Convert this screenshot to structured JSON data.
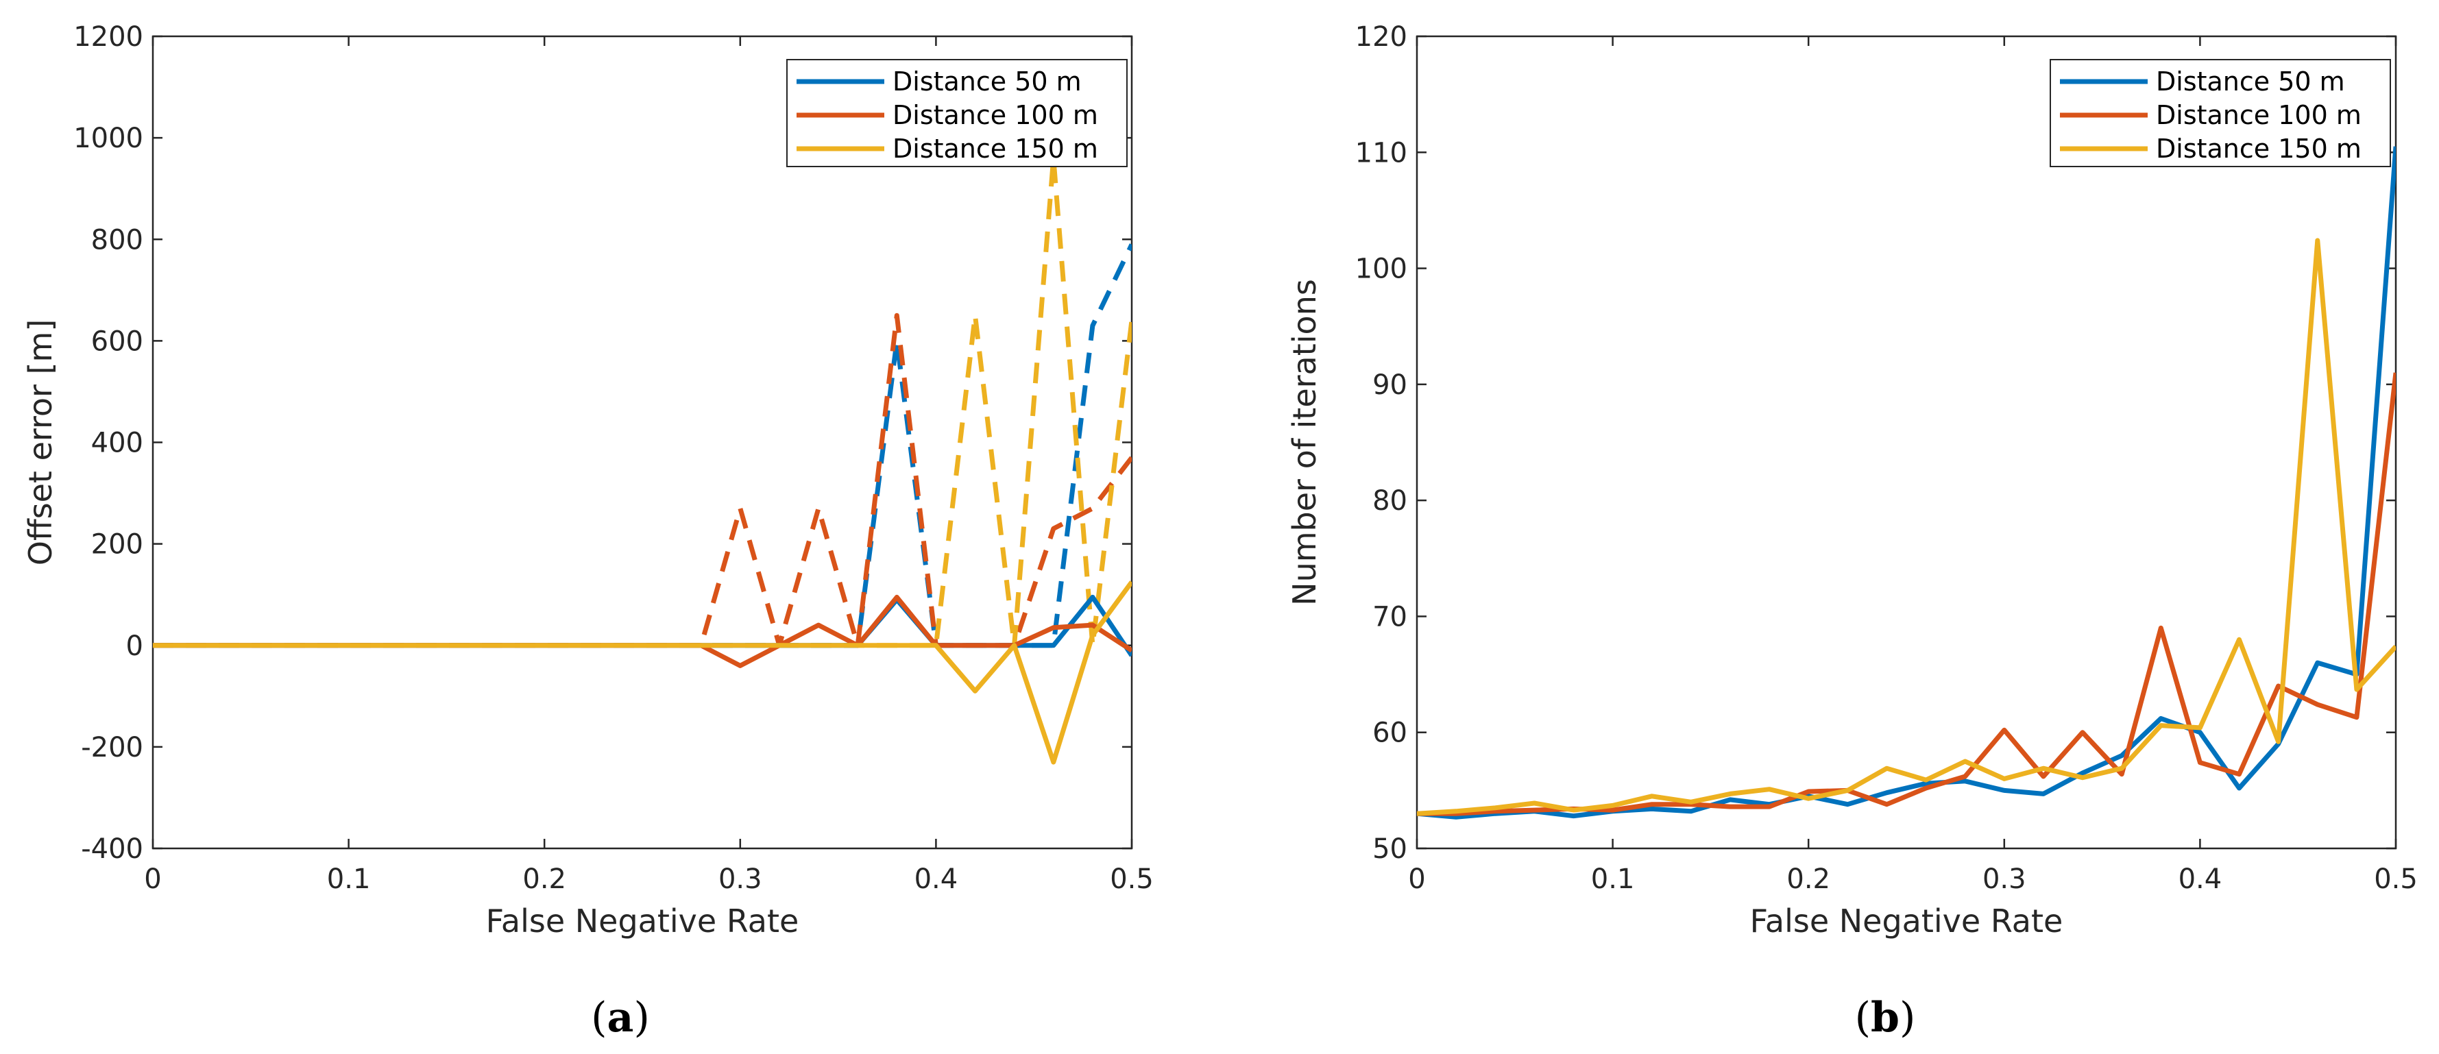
{
  "chart_data": [
    {
      "type": "line",
      "caption": {
        "open": "(",
        "letter": "a",
        "close": ")"
      },
      "xlabel": "False Negative Rate",
      "ylabel": "Offset error [m]",
      "xlim": [
        0,
        0.5
      ],
      "ylim": [
        -400,
        1200
      ],
      "xticks": [
        0,
        0.1,
        0.2,
        0.3,
        0.4,
        0.5
      ],
      "xtick_labels": [
        "0",
        "0.1",
        "0.2",
        "0.3",
        "0.4",
        "0.5"
      ],
      "yticks": [
        -400,
        -200,
        0,
        200,
        400,
        600,
        800,
        1000,
        1200
      ],
      "ytick_labels": [
        "-400",
        "-200",
        "0",
        "200",
        "400",
        "600",
        "800",
        "1000",
        "1200"
      ],
      "grid": false,
      "legend": "top-right",
      "x": [
        0,
        0.02,
        0.04,
        0.06,
        0.08,
        0.1,
        0.12,
        0.14,
        0.16,
        0.18,
        0.2,
        0.22,
        0.24,
        0.26,
        0.28,
        0.3,
        0.32,
        0.34,
        0.36,
        0.38,
        0.4,
        0.42,
        0.44,
        0.46,
        0.48,
        0.5
      ],
      "series": [
        {
          "name": "Distance 50 m",
          "color": "#0072BD",
          "solid": [
            0,
            0,
            0,
            0,
            0,
            0,
            0,
            0,
            0,
            0,
            0,
            0,
            0,
            0,
            0,
            0,
            0,
            0,
            0,
            90,
            0,
            0,
            0,
            0,
            95,
            -20
          ],
          "dashed": [
            0,
            0,
            0,
            0,
            0,
            0,
            0,
            0,
            0,
            0,
            0,
            0,
            0,
            0,
            0,
            0,
            0,
            0,
            0,
            600,
            0,
            0,
            0,
            0,
            630,
            790
          ]
        },
        {
          "name": "Distance 100 m",
          "color": "#D95319",
          "solid": [
            0,
            0,
            0,
            0,
            0,
            0,
            0,
            0,
            0,
            0,
            0,
            0,
            0,
            0,
            0,
            -40,
            0,
            40,
            0,
            95,
            0,
            0,
            0,
            35,
            40,
            -10
          ],
          "dashed": [
            0,
            0,
            0,
            0,
            0,
            0,
            0,
            0,
            0,
            0,
            0,
            0,
            0,
            0,
            0,
            270,
            0,
            270,
            0,
            650,
            0,
            0,
            0,
            230,
            270,
            370
          ]
        },
        {
          "name": "Distance 150 m",
          "color": "#EDB120",
          "solid": [
            0,
            0,
            0,
            0,
            0,
            0,
            0,
            0,
            0,
            0,
            0,
            0,
            0,
            0,
            0,
            0,
            0,
            0,
            0,
            0,
            0,
            -90,
            0,
            -230,
            20,
            125
          ],
          "dashed": [
            0,
            0,
            0,
            0,
            0,
            0,
            0,
            0,
            0,
            0,
            0,
            0,
            0,
            0,
            0,
            0,
            0,
            0,
            0,
            0,
            0,
            650,
            0,
            960,
            0,
            640
          ]
        }
      ]
    },
    {
      "type": "line",
      "caption": {
        "open": "(",
        "letter": "b",
        "close": ")"
      },
      "xlabel": "False Negative Rate",
      "ylabel": "Number of iterations",
      "xlim": [
        0,
        0.5
      ],
      "ylim": [
        50,
        120
      ],
      "xticks": [
        0,
        0.1,
        0.2,
        0.3,
        0.4,
        0.5
      ],
      "xtick_labels": [
        "0",
        "0.1",
        "0.2",
        "0.3",
        "0.4",
        "0.5"
      ],
      "yticks": [
        50,
        60,
        70,
        80,
        90,
        100,
        110,
        120
      ],
      "ytick_labels": [
        "50",
        "60",
        "70",
        "80",
        "90",
        "100",
        "110",
        "120"
      ],
      "grid": false,
      "legend": "top-right",
      "x": [
        0,
        0.02,
        0.04,
        0.06,
        0.08,
        0.1,
        0.12,
        0.14,
        0.16,
        0.18,
        0.2,
        0.22,
        0.24,
        0.26,
        0.28,
        0.3,
        0.32,
        0.34,
        0.36,
        0.38,
        0.4,
        0.42,
        0.44,
        0.46,
        0.48,
        0.5
      ],
      "series": [
        {
          "name": "Distance 50 m",
          "color": "#0072BD",
          "values": [
            53,
            52.7,
            53,
            53.2,
            52.8,
            53.2,
            53.4,
            53.2,
            54.2,
            53.8,
            54.5,
            53.8,
            54.8,
            55.6,
            55.8,
            55,
            54.7,
            56.5,
            58,
            61.2,
            60,
            55.2,
            59,
            66,
            65,
            110.5
          ]
        },
        {
          "name": "Distance 100 m",
          "color": "#D95319",
          "values": [
            53,
            53,
            53.2,
            53.3,
            53.4,
            53.3,
            53.8,
            53.8,
            53.6,
            53.6,
            54.9,
            55,
            53.8,
            55.2,
            56.2,
            60.2,
            56.2,
            60,
            56.4,
            69,
            57.4,
            56.4,
            64,
            62.4,
            61.3,
            91
          ]
        },
        {
          "name": "Distance 150 m",
          "color": "#EDB120",
          "values": [
            53,
            53.2,
            53.5,
            53.9,
            53.3,
            53.7,
            54.5,
            54,
            54.7,
            55.1,
            54.3,
            55,
            56.9,
            55.9,
            57.5,
            56,
            56.9,
            56.1,
            56.9,
            60.6,
            60.4,
            68,
            59.2,
            102.4,
            63.7,
            67.4
          ]
        }
      ]
    }
  ]
}
